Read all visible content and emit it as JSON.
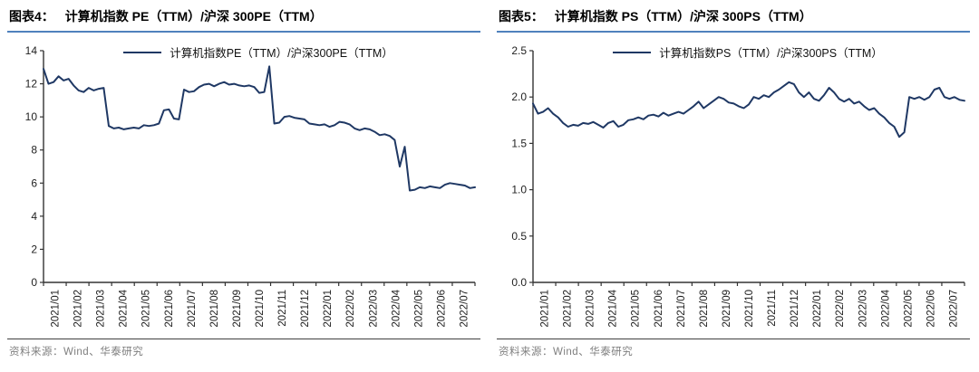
{
  "chart_data": [
    {
      "type": "line",
      "figure_label": "图表4：",
      "title": "计算机指数 PE（TTM）/沪深 300PE（TTM）",
      "legend": "计算机指数PE（TTM）/沪深300PE（TTM）",
      "source": "资料来源：Wind、华泰研究",
      "line_color": "#1F3864",
      "grid": false,
      "legend_position": "top-center",
      "ylim": [
        0,
        14
      ],
      "yticks": [
        0,
        2,
        4,
        6,
        8,
        10,
        12,
        14
      ],
      "ytick_labels": [
        "0",
        "2",
        "4",
        "6",
        "8",
        "10",
        "12",
        "14"
      ],
      "categories": [
        "2021/01",
        "2021/02",
        "2021/03",
        "2021/04",
        "2021/05",
        "2021/06",
        "2021/07",
        "2021/08",
        "2021/09",
        "2021/10",
        "2021/11",
        "2021/12",
        "2022/01",
        "2022/02",
        "2022/03",
        "2022/04",
        "2022/05",
        "2022/06",
        "2022/07"
      ],
      "values": [
        12.9,
        12.0,
        12.1,
        12.45,
        12.2,
        12.3,
        11.9,
        11.6,
        11.5,
        11.75,
        11.6,
        11.7,
        11.75,
        9.45,
        9.3,
        9.35,
        9.25,
        9.3,
        9.35,
        9.3,
        9.5,
        9.45,
        9.5,
        9.6,
        10.4,
        10.45,
        9.9,
        9.85,
        11.65,
        11.5,
        11.55,
        11.8,
        11.95,
        12.0,
        11.85,
        12.0,
        12.1,
        11.95,
        12.0,
        11.9,
        11.85,
        11.9,
        11.8,
        11.45,
        11.5,
        13.05,
        9.6,
        9.65,
        10.0,
        10.05,
        9.95,
        9.9,
        9.85,
        9.6,
        9.55,
        9.5,
        9.55,
        9.4,
        9.5,
        9.7,
        9.65,
        9.55,
        9.3,
        9.2,
        9.3,
        9.25,
        9.1,
        8.9,
        8.95,
        8.85,
        8.6,
        7.0,
        8.2,
        5.55,
        5.6,
        5.75,
        5.7,
        5.8,
        5.75,
        5.7,
        5.9,
        6.0,
        5.95,
        5.9,
        5.85,
        5.7,
        5.75
      ]
    },
    {
      "type": "line",
      "figure_label": "图表5：",
      "title": "计算机指数 PS（TTM）/沪深 300PS（TTM）",
      "legend": "计算机指数PS（TTM）/沪深300PS（TTM）",
      "source": "资料来源：Wind、华泰研究",
      "line_color": "#1F3864",
      "grid": false,
      "legend_position": "top-center",
      "ylim": [
        0,
        2.5
      ],
      "yticks": [
        0,
        0.5,
        1.0,
        1.5,
        2.0,
        2.5
      ],
      "ytick_labels": [
        "0.0",
        "0.5",
        "1.0",
        "1.5",
        "2.0",
        "2.5"
      ],
      "categories": [
        "2021/01",
        "2021/02",
        "2021/03",
        "2021/04",
        "2021/05",
        "2021/06",
        "2021/07",
        "2021/08",
        "2021/09",
        "2021/10",
        "2021/11",
        "2021/12",
        "2022/01",
        "2022/02",
        "2022/03",
        "2022/04",
        "2022/05",
        "2022/06",
        "2022/07"
      ],
      "values": [
        1.93,
        1.82,
        1.84,
        1.88,
        1.82,
        1.78,
        1.72,
        1.68,
        1.7,
        1.69,
        1.72,
        1.71,
        1.73,
        1.7,
        1.67,
        1.72,
        1.74,
        1.68,
        1.7,
        1.75,
        1.76,
        1.78,
        1.76,
        1.8,
        1.81,
        1.79,
        1.83,
        1.8,
        1.82,
        1.84,
        1.82,
        1.86,
        1.9,
        1.95,
        1.88,
        1.92,
        1.96,
        2.0,
        1.98,
        1.94,
        1.93,
        1.9,
        1.88,
        1.92,
        2.0,
        1.98,
        2.02,
        2.0,
        2.05,
        2.08,
        2.12,
        2.16,
        2.14,
        2.05,
        2.0,
        2.05,
        1.98,
        1.96,
        2.02,
        2.1,
        2.05,
        1.98,
        1.95,
        1.98,
        1.93,
        1.95,
        1.9,
        1.86,
        1.88,
        1.82,
        1.78,
        1.72,
        1.68,
        1.57,
        1.62,
        2.0,
        1.98,
        2.0,
        1.97,
        2.0,
        2.08,
        2.1,
        2.0,
        1.98,
        2.0,
        1.97,
        1.96
      ]
    }
  ],
  "style": {
    "accent_rule_color": "#4F81BD",
    "axis_color": "#333333",
    "source_rule_color": "#404040",
    "source_text_color": "#7f7f7f"
  }
}
